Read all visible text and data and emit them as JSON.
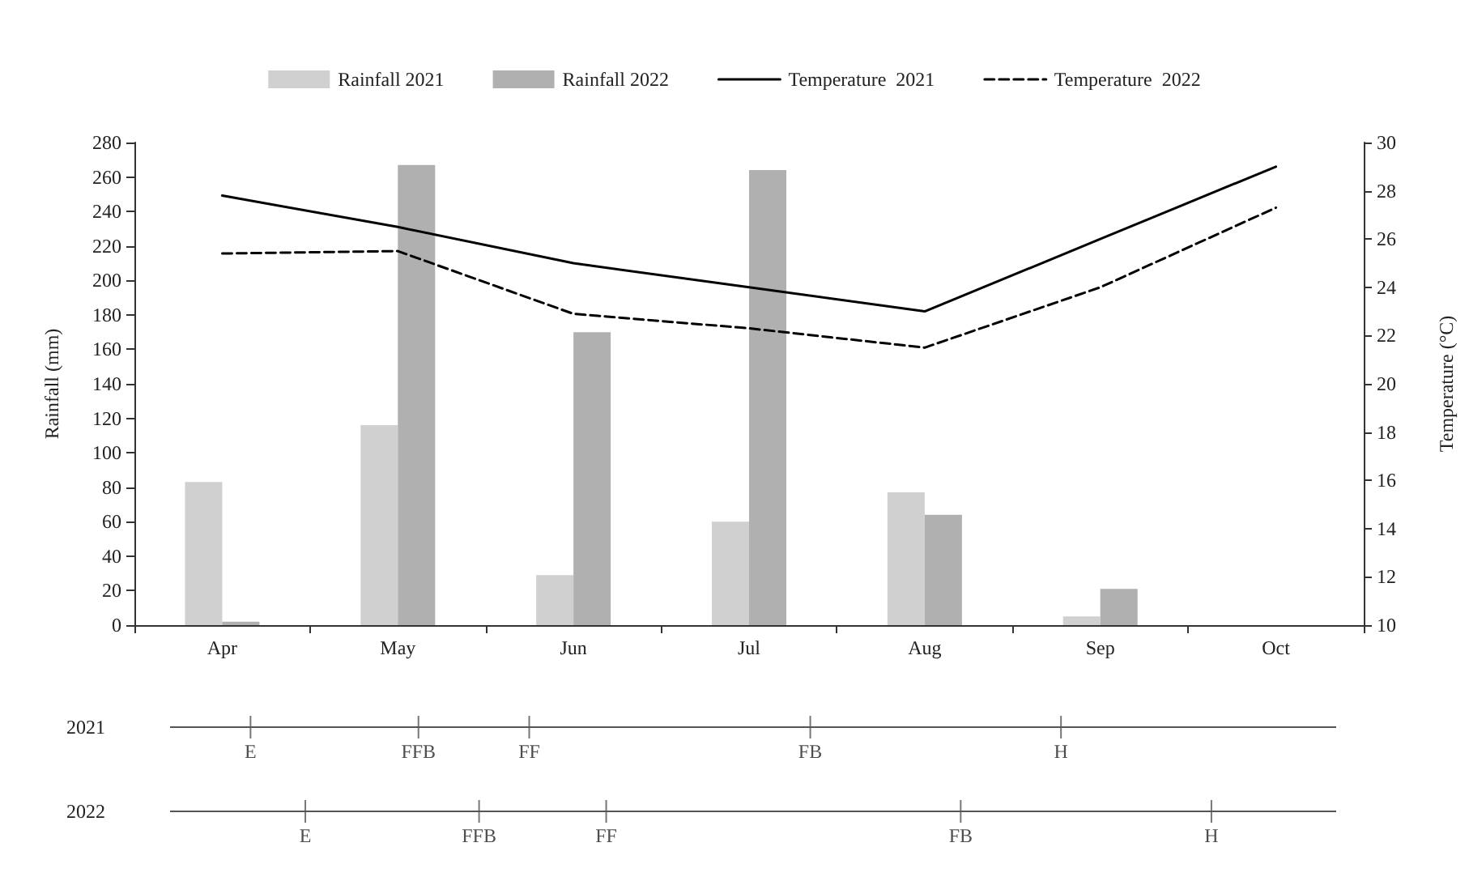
{
  "chart_data": [
    {
      "type": "bar",
      "categories": [
        "Apr",
        "May",
        "Jun",
        "Jul",
        "Aug",
        "Sep",
        "Oct"
      ],
      "ylabel": "Rainfall (mm)",
      "y2label": "Temperature (°C)",
      "series": [
        {
          "name": "Rainfall 2021",
          "color": "#d0d0d0",
          "values": [
            83,
            116,
            29,
            60,
            77,
            5,
            null
          ]
        },
        {
          "name": "Rainfall 2022",
          "color": "#b0b0b0",
          "values": [
            2,
            267,
            170,
            264,
            64,
            21,
            null
          ]
        },
        {
          "name": "Temperature  2021",
          "type": "line",
          "axis": "y2",
          "color": "#000000",
          "line_style": "solid",
          "values": [
            27.8,
            26.5,
            25.0,
            24.0,
            23.0,
            26.0,
            29.0
          ]
        },
        {
          "name": "Temperature  2022",
          "type": "line",
          "axis": "y2",
          "color": "#000000",
          "line_style": "dashed",
          "values": [
            25.4,
            25.5,
            22.9,
            22.3,
            21.5,
            24.0,
            27.3
          ]
        }
      ],
      "ylim": [
        0,
        280
      ],
      "yticks": [
        0,
        20,
        40,
        60,
        80,
        100,
        120,
        140,
        160,
        180,
        200,
        220,
        240,
        260,
        280
      ],
      "y2lim": [
        10,
        30
      ],
      "y2ticks": [
        10,
        12,
        14,
        16,
        18,
        20,
        22,
        24,
        26,
        28,
        30
      ],
      "grid": false,
      "legend": "top",
      "marker": "none"
    },
    {
      "type": "other",
      "y_categories": [
        "2021",
        "2022"
      ],
      "annotations": [
        "E",
        "FFB",
        "FF",
        "FB",
        "H",
        "E",
        "FFB",
        "FF",
        "FB",
        "H"
      ]
    }
  ]
}
